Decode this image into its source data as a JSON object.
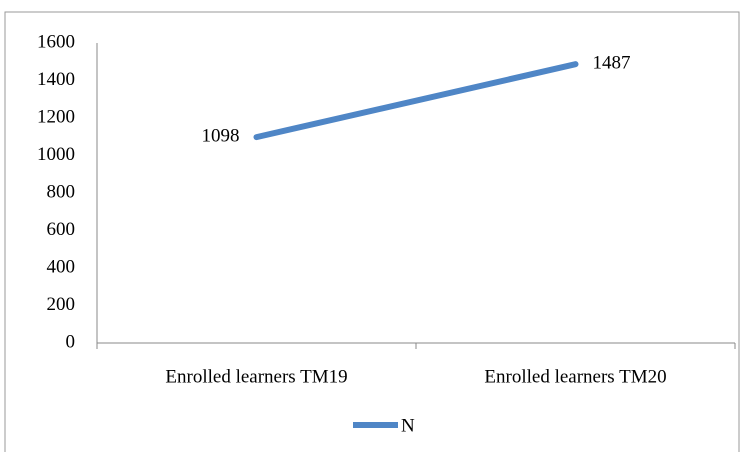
{
  "chart_data": {
    "type": "line",
    "categories": [
      "Enrolled learners TM19",
      "Enrolled learners TM20"
    ],
    "series": [
      {
        "name": "N",
        "color": "#4f86c6",
        "values": [
          1098,
          1487
        ]
      }
    ],
    "ylim": [
      0,
      1600
    ],
    "yticks": [
      0,
      200,
      400,
      600,
      800,
      1000,
      1200,
      1400,
      1600
    ],
    "grid": false,
    "legend": "bottom"
  }
}
